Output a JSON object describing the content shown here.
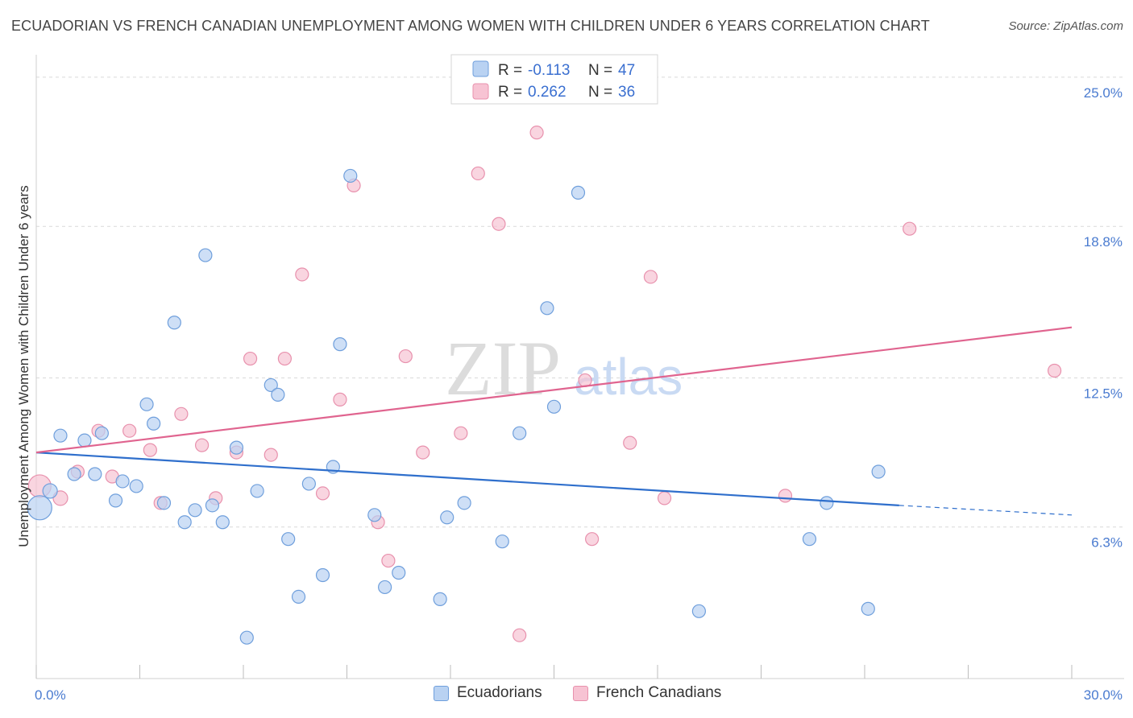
{
  "title": "ECUADORIAN VS FRENCH CANADIAN UNEMPLOYMENT AMONG WOMEN WITH CHILDREN UNDER 6 YEARS CORRELATION CHART",
  "source": "Source: ZipAtlas.com",
  "watermark": {
    "zip": "ZIP",
    "atlas": "atlas"
  },
  "colors": {
    "blue_fill": "#b9d2f2",
    "blue_stroke": "#6f9fdc",
    "blue_line": "#2f6fcc",
    "pink_fill": "#f7c3d3",
    "pink_stroke": "#e891ad",
    "pink_line": "#e0648f",
    "grid": "#d9d9d9",
    "tick_text": "#4a7bd0"
  },
  "legend": {
    "rows": [
      {
        "r_label": "R =",
        "r_value": "-0.113",
        "n_label": "N =",
        "n_value": "47"
      },
      {
        "r_label": "R =",
        "r_value": "0.262",
        "n_label": "N =",
        "n_value": "36"
      }
    ]
  },
  "bottom_legend": [
    "Ecuadorians",
    "French Canadians"
  ],
  "chart_data": {
    "type": "scatter",
    "title": "ECUADORIAN VS FRENCH CANADIAN UNEMPLOYMENT AMONG WOMEN WITH CHILDREN UNDER 6 YEARS CORRELATION CHART",
    "xlabel": "",
    "ylabel": "Unemployment Among Women with Children Under 6 years",
    "xlim": [
      0,
      30
    ],
    "ylim": [
      0,
      25.6
    ],
    "x_tick_labels": [
      "0.0%",
      "30.0%"
    ],
    "y_ticks": [
      6.3,
      12.5,
      18.8,
      25.0
    ],
    "y_tick_labels": [
      "6.3%",
      "12.5%",
      "18.8%",
      "25.0%"
    ],
    "grid": true,
    "legend_position": "top-center",
    "series": [
      {
        "name": "Ecuadorians",
        "r": -0.113,
        "n": 47,
        "trend": {
          "x0": 0,
          "y0": 9.4,
          "x1": 25.0,
          "y1": 7.2,
          "dashed_to_x": 30,
          "dashed_to_y": 6.8
        },
        "points": [
          [
            0.1,
            7.1,
            30
          ],
          [
            0.4,
            7.8,
            18
          ],
          [
            0.7,
            10.1,
            16
          ],
          [
            1.1,
            8.5,
            16
          ],
          [
            1.4,
            9.9,
            16
          ],
          [
            1.7,
            8.5,
            16
          ],
          [
            1.9,
            10.2,
            16
          ],
          [
            2.3,
            7.4,
            16
          ],
          [
            2.5,
            8.2,
            16
          ],
          [
            2.9,
            8.0,
            16
          ],
          [
            3.2,
            11.4,
            16
          ],
          [
            3.4,
            10.6,
            16
          ],
          [
            3.7,
            7.3,
            16
          ],
          [
            4.0,
            14.8,
            16
          ],
          [
            4.3,
            6.5,
            16
          ],
          [
            4.6,
            7.0,
            16
          ],
          [
            4.9,
            17.6,
            16
          ],
          [
            5.1,
            7.2,
            16
          ],
          [
            5.4,
            6.5,
            16
          ],
          [
            5.8,
            9.6,
            16
          ],
          [
            6.1,
            1.7,
            16
          ],
          [
            6.4,
            7.8,
            16
          ],
          [
            6.8,
            12.2,
            16
          ],
          [
            7.0,
            11.8,
            16
          ],
          [
            7.3,
            5.8,
            16
          ],
          [
            7.6,
            3.4,
            16
          ],
          [
            7.9,
            8.1,
            16
          ],
          [
            8.3,
            4.3,
            16
          ],
          [
            8.6,
            8.8,
            16
          ],
          [
            8.8,
            13.9,
            16
          ],
          [
            9.1,
            20.9,
            16
          ],
          [
            9.8,
            6.8,
            16
          ],
          [
            10.1,
            3.8,
            16
          ],
          [
            10.5,
            4.4,
            16
          ],
          [
            11.7,
            3.3,
            16
          ],
          [
            11.9,
            6.7,
            16
          ],
          [
            12.4,
            7.3,
            16
          ],
          [
            13.5,
            5.7,
            16
          ],
          [
            14.0,
            10.2,
            16
          ],
          [
            14.8,
            15.4,
            16
          ],
          [
            15.0,
            11.3,
            16
          ],
          [
            15.7,
            20.2,
            16
          ],
          [
            19.2,
            2.8,
            16
          ],
          [
            22.4,
            5.8,
            16
          ],
          [
            22.9,
            7.3,
            16
          ],
          [
            24.1,
            2.9,
            16
          ],
          [
            24.4,
            8.6,
            16
          ]
        ]
      },
      {
        "name": "French Canadians",
        "r": 0.262,
        "n": 36,
        "trend": {
          "x0": 0,
          "y0": 9.4,
          "x1": 30,
          "y1": 14.6
        },
        "points": [
          [
            0.1,
            8.0,
            28
          ],
          [
            0.7,
            7.5,
            18
          ],
          [
            1.2,
            8.6,
            16
          ],
          [
            1.8,
            10.3,
            16
          ],
          [
            2.2,
            8.4,
            16
          ],
          [
            2.7,
            10.3,
            16
          ],
          [
            3.3,
            9.5,
            16
          ],
          [
            3.6,
            7.3,
            16
          ],
          [
            4.2,
            11.0,
            16
          ],
          [
            4.8,
            9.7,
            16
          ],
          [
            5.2,
            7.5,
            16
          ],
          [
            5.8,
            9.4,
            16
          ],
          [
            6.2,
            13.3,
            16
          ],
          [
            6.8,
            9.3,
            16
          ],
          [
            7.2,
            13.3,
            16
          ],
          [
            7.7,
            16.8,
            16
          ],
          [
            8.3,
            7.7,
            16
          ],
          [
            8.8,
            11.6,
            16
          ],
          [
            9.2,
            20.5,
            16
          ],
          [
            9.9,
            6.5,
            16
          ],
          [
            10.2,
            4.9,
            16
          ],
          [
            10.7,
            13.4,
            16
          ],
          [
            11.2,
            9.4,
            16
          ],
          [
            12.3,
            10.2,
            16
          ],
          [
            12.8,
            21.0,
            16
          ],
          [
            13.4,
            18.9,
            16
          ],
          [
            14.0,
            1.8,
            16
          ],
          [
            14.5,
            22.7,
            16
          ],
          [
            15.9,
            12.4,
            16
          ],
          [
            16.1,
            5.8,
            16
          ],
          [
            17.2,
            9.8,
            16
          ],
          [
            17.8,
            16.7,
            16
          ],
          [
            18.2,
            7.5,
            16
          ],
          [
            21.7,
            7.6,
            16
          ],
          [
            25.3,
            18.7,
            16
          ],
          [
            29.5,
            12.8,
            16
          ]
        ]
      }
    ]
  }
}
